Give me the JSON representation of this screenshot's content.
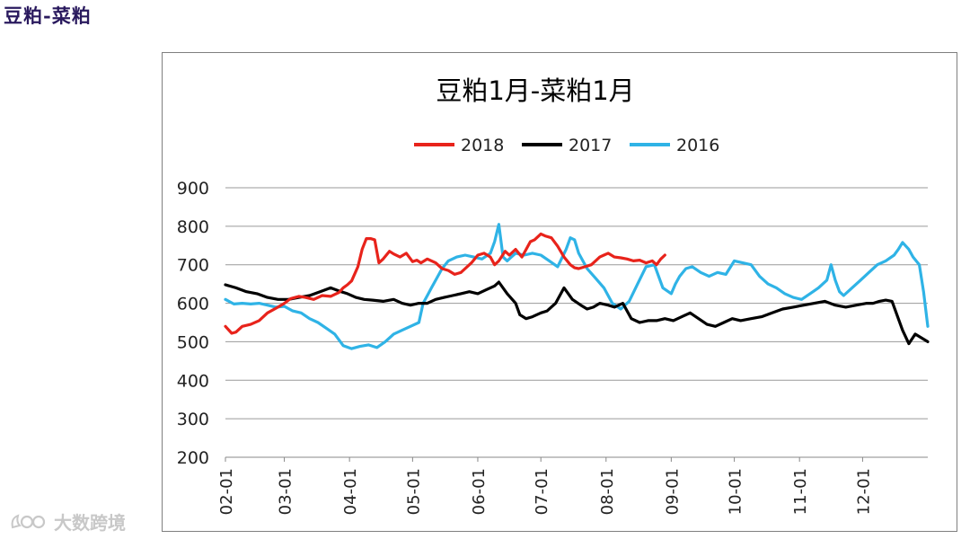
{
  "page": {
    "title": "豆粕-菜粕",
    "watermark_text": "大数跨境",
    "watermark_logo_icon": "dashuju-logo-icon"
  },
  "chart_data": {
    "type": "line",
    "title": "豆粕1月-菜粕1月",
    "xlabel": "",
    "ylabel": "",
    "ylim": [
      200,
      900
    ],
    "yticks": [
      200,
      300,
      400,
      500,
      600,
      700,
      800,
      900
    ],
    "xlim": [
      0,
      334
    ],
    "xticks": [
      {
        "label": "02-01",
        "day": 0
      },
      {
        "label": "03-01",
        "day": 28
      },
      {
        "label": "04-01",
        "day": 59
      },
      {
        "label": "05-01",
        "day": 89
      },
      {
        "label": "06-01",
        "day": 120
      },
      {
        "label": "07-01",
        "day": 150
      },
      {
        "label": "08-01",
        "day": 181
      },
      {
        "label": "09-01",
        "day": 212
      },
      {
        "label": "10-01",
        "day": 242
      },
      {
        "label": "11-01",
        "day": 273
      },
      {
        "label": "12-01",
        "day": 303
      }
    ],
    "grid": true,
    "legend_position": "top",
    "series": [
      {
        "name": "2018",
        "color": "#e8231b",
        "x": [
          0,
          3,
          5,
          8,
          12,
          16,
          20,
          25,
          28,
          31,
          35,
          38,
          42,
          46,
          50,
          54,
          56,
          58,
          60,
          63,
          65,
          67,
          69,
          71,
          73,
          75,
          78,
          80,
          83,
          86,
          89,
          91,
          93,
          96,
          100,
          103,
          106,
          109,
          112,
          114,
          117,
          120,
          123,
          126,
          128,
          130,
          133,
          135,
          138,
          141,
          143,
          145,
          147,
          150,
          152,
          155,
          158,
          161,
          164,
          166,
          168,
          171,
          174,
          176,
          178,
          180,
          182,
          185,
          188,
          191,
          194,
          197,
          200,
          203,
          205,
          207,
          209
        ],
        "y": [
          540,
          522,
          525,
          540,
          545,
          555,
          575,
          590,
          600,
          612,
          618,
          615,
          610,
          620,
          618,
          628,
          640,
          648,
          658,
          695,
          740,
          768,
          768,
          765,
          705,
          715,
          735,
          728,
          720,
          730,
          708,
          712,
          705,
          715,
          705,
          690,
          685,
          675,
          680,
          690,
          705,
          725,
          730,
          720,
          700,
          710,
          735,
          725,
          740,
          720,
          740,
          760,
          765,
          780,
          775,
          770,
          748,
          720,
          700,
          692,
          690,
          695,
          700,
          710,
          720,
          725,
          730,
          720,
          718,
          715,
          710,
          712,
          705,
          710,
          700,
          715,
          725
        ]
      },
      {
        "name": "2017",
        "color": "#000000",
        "x": [
          0,
          5,
          10,
          15,
          20,
          25,
          30,
          35,
          40,
          45,
          50,
          55,
          58,
          62,
          66,
          70,
          75,
          80,
          84,
          88,
          92,
          96,
          100,
          104,
          108,
          112,
          116,
          120,
          124,
          128,
          130,
          134,
          138,
          140,
          143,
          146,
          150,
          153,
          157,
          161,
          165,
          169,
          172,
          175,
          178,
          182,
          185,
          189,
          193,
          197,
          201,
          205,
          209,
          213,
          217,
          221,
          225,
          229,
          233,
          237,
          241,
          245,
          250,
          255,
          260,
          265,
          270,
          275,
          280,
          285,
          290,
          295,
          300,
          305,
          308,
          311,
          314,
          317,
          320,
          322,
          325,
          328,
          331,
          334
        ],
        "y": [
          648,
          640,
          630,
          625,
          615,
          610,
          610,
          615,
          620,
          630,
          640,
          630,
          625,
          615,
          610,
          608,
          605,
          610,
          600,
          595,
          600,
          600,
          610,
          615,
          620,
          625,
          630,
          625,
          635,
          645,
          655,
          625,
          600,
          570,
          560,
          565,
          575,
          580,
          600,
          640,
          610,
          595,
          585,
          590,
          600,
          595,
          590,
          600,
          560,
          550,
          555,
          555,
          560,
          555,
          565,
          575,
          560,
          545,
          540,
          550,
          560,
          555,
          560,
          565,
          575,
          585,
          590,
          595,
          600,
          605,
          595,
          590,
          595,
          600,
          600,
          605,
          608,
          605,
          560,
          530,
          495,
          520,
          510,
          500
        ]
      },
      {
        "name": "2016",
        "color": "#2fb3e6",
        "x": [
          0,
          4,
          8,
          12,
          16,
          20,
          24,
          28,
          32,
          36,
          40,
          44,
          48,
          52,
          56,
          60,
          64,
          68,
          72,
          76,
          80,
          84,
          88,
          92,
          94,
          96,
          98,
          100,
          103,
          106,
          110,
          114,
          118,
          122,
          126,
          128,
          130,
          132,
          134,
          136,
          138,
          142,
          146,
          150,
          154,
          158,
          162,
          164,
          166,
          168,
          172,
          176,
          180,
          184,
          188,
          192,
          196,
          200,
          204,
          208,
          212,
          214,
          216,
          219,
          222,
          226,
          230,
          234,
          238,
          242,
          246,
          250,
          254,
          258,
          262,
          266,
          270,
          274,
          278,
          282,
          286,
          288,
          290,
          292,
          294,
          298,
          302,
          306,
          310,
          314,
          318,
          320,
          322,
          325,
          327,
          330,
          332,
          334
        ],
        "y": [
          610,
          598,
          600,
          598,
          600,
          595,
          590,
          592,
          580,
          575,
          560,
          550,
          535,
          520,
          490,
          482,
          488,
          492,
          485,
          500,
          520,
          530,
          540,
          550,
          600,
          620,
          640,
          660,
          690,
          710,
          720,
          725,
          720,
          715,
          730,
          760,
          805,
          720,
          710,
          720,
          730,
          725,
          730,
          725,
          710,
          695,
          740,
          770,
          765,
          730,
          690,
          665,
          640,
          600,
          585,
          605,
          650,
          695,
          700,
          640,
          625,
          650,
          670,
          690,
          695,
          680,
          670,
          680,
          675,
          710,
          705,
          700,
          670,
          650,
          640,
          625,
          615,
          610,
          625,
          640,
          660,
          700,
          660,
          630,
          620,
          640,
          660,
          680,
          700,
          710,
          725,
          740,
          758,
          740,
          720,
          700,
          630,
          540
        ]
      }
    ]
  }
}
